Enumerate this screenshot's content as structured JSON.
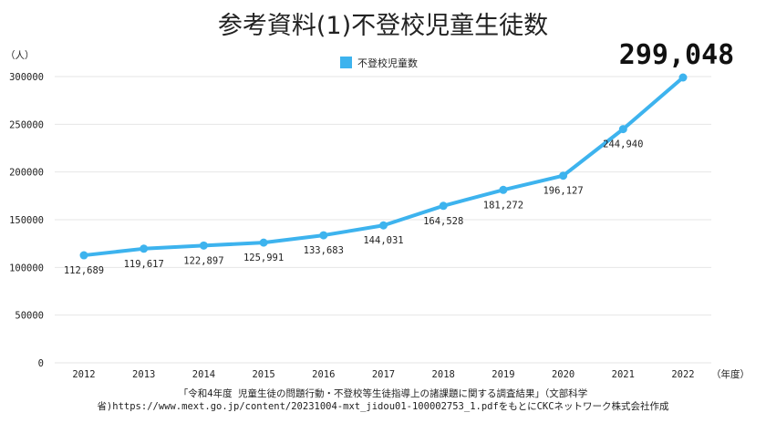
{
  "chart_data": {
    "type": "line",
    "title": "参考資料(1)不登校児童生徒数",
    "highlight_value": "299,048",
    "y_unit": "（人）",
    "x_unit": "（年度）",
    "ylim": [
      0,
      300000
    ],
    "y_ticks": [
      0,
      50000,
      100000,
      150000,
      200000,
      250000,
      300000
    ],
    "grid": true,
    "legend_position": "top-center",
    "categories": [
      "2012",
      "2013",
      "2014",
      "2015",
      "2016",
      "2017",
      "2018",
      "2019",
      "2020",
      "2021",
      "2022"
    ],
    "series": [
      {
        "name": "不登校児童数",
        "color": "#3db3ee",
        "values": [
          112689,
          119617,
          122897,
          125991,
          133683,
          144031,
          164528,
          181272,
          196127,
          244940,
          299048
        ],
        "labels": [
          "112,689",
          "119,617",
          "122,897",
          "125,991",
          "133,683",
          "144,031",
          "164,528",
          "181,272",
          "196,127",
          "244,940",
          ""
        ]
      }
    ]
  },
  "source": {
    "line1": "「令和4年度 児童生徒の問題行動・不登校等生徒指導上の諸課題に関する調査結果」（文部科学",
    "line2": "省)https://www.mext.go.jp/content/20231004-mxt_jidou01-100002753_1.pdfをもとにCKCネットワーク株式会社作成"
  }
}
